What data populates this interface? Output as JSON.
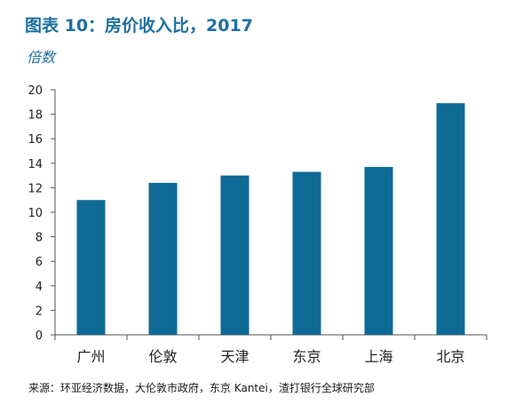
{
  "header": {
    "title": "图表 10：房价收入比，2017",
    "subtitle": "倍数"
  },
  "footer": {
    "source": "来源：环亚经济数据，大伦敦市政府，东京 Kantei，渣打银行全球研究部"
  },
  "colors": {
    "bar": "#0f6b96",
    "title": "#1f6fa0"
  },
  "chart_data": {
    "type": "bar",
    "title": "图表 10：房价收入比，2017",
    "subtitle": "倍数",
    "categories": [
      "广州",
      "伦敦",
      "天津",
      "东京",
      "上海",
      "北京"
    ],
    "values": [
      11.0,
      12.4,
      13.0,
      13.3,
      13.7,
      18.9
    ],
    "ylim": [
      0,
      20
    ],
    "yticks": [
      0,
      2,
      4,
      6,
      8,
      10,
      12,
      14,
      16,
      18,
      20
    ],
    "grid": false,
    "legend": "none"
  }
}
